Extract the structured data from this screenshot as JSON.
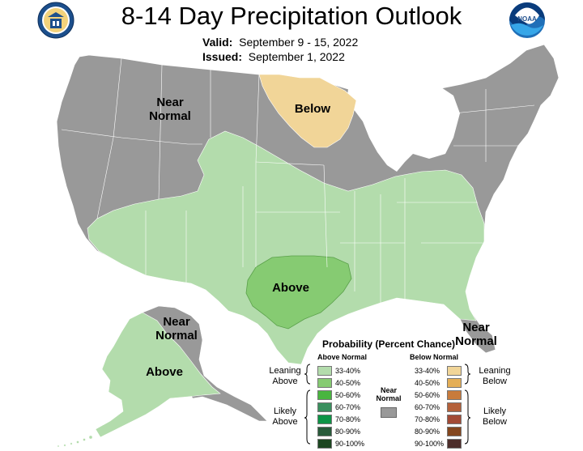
{
  "header": {
    "title": "8-14 Day Precipitation Outlook",
    "valid_label": "Valid:",
    "valid_value": "September 9 - 15, 2022",
    "issued_label": "Issued:",
    "issued_value": "September 1, 2022",
    "left_logo": "doc-seal-icon",
    "right_logo": "noaa-logo-icon"
  },
  "map_labels": {
    "near_normal_west": "Near\nNormal",
    "below": "Below",
    "above_texas": "Above",
    "near_normal_florida": "Near\nNormal",
    "near_normal_alaska": "Near\nNormal",
    "above_alaska": "Above"
  },
  "colors": {
    "near_normal": "#999999",
    "above_33_40": "#b3dcac",
    "above_40_50": "#86cb72",
    "below_33_40": "#f1d598",
    "below_40_50": "#e4ae56",
    "background": "#ffffff"
  },
  "legend": {
    "title": "Probability (Percent Chance)",
    "above_header": "Above Normal",
    "below_header": "Below Normal",
    "near_normal_label": "Near\nNormal",
    "leaning_above": "Leaning\nAbove",
    "likely_above": "Likely\nAbove",
    "leaning_below": "Leaning\nBelow",
    "likely_below": "Likely\nBelow",
    "above_ranges": [
      {
        "range": "33-40%",
        "color": "#b3dcac"
      },
      {
        "range": "40-50%",
        "color": "#86cb72"
      },
      {
        "range": "50-60%",
        "color": "#49b53f"
      },
      {
        "range": "60-70%",
        "color": "#3a8f5e"
      },
      {
        "range": "70-80%",
        "color": "#0d9446"
      },
      {
        "range": "80-90%",
        "color": "#285a3a"
      },
      {
        "range": "90-100%",
        "color": "#1c4620"
      }
    ],
    "below_ranges": [
      {
        "range": "33-40%",
        "color": "#f1d598"
      },
      {
        "range": "40-50%",
        "color": "#e4ae56"
      },
      {
        "range": "50-60%",
        "color": "#c87b3c"
      },
      {
        "range": "60-70%",
        "color": "#b4613b"
      },
      {
        "range": "70-80%",
        "color": "#a24a35"
      },
      {
        "range": "80-90%",
        "color": "#84461e"
      },
      {
        "range": "90-100%",
        "color": "#4d2d2a"
      }
    ]
  }
}
